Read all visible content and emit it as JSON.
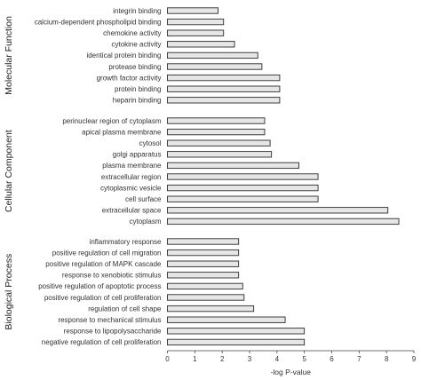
{
  "chart_data": {
    "type": "bar",
    "orientation": "horizontal",
    "xlabel": "-log P-value",
    "xlim": [
      0,
      9
    ],
    "xticks": [
      "0",
      "1",
      "2",
      "3",
      "4",
      "5",
      "6",
      "7",
      "8",
      "9"
    ],
    "grid": false,
    "legend": "none",
    "bar_color": "#e6e6e6",
    "bar_edge_color": "#2b2b2b",
    "groups": [
      {
        "name": "Molecular Function",
        "categories": [
          "integrin binding",
          "calcium-dependent phospholipid binding",
          "chemokine activity",
          "cytokine activity",
          "identical protein binding",
          "protease binding",
          "growth factor activity",
          "protein binding",
          "heparin binding"
        ],
        "values": [
          1.85,
          2.05,
          2.05,
          2.45,
          3.3,
          3.45,
          4.1,
          4.1,
          4.1
        ]
      },
      {
        "name": "Cellular Component",
        "categories": [
          "perinuclear region of cytoplasm",
          "apical plasma membrane",
          "cytosol",
          "golgi apparatus",
          "plasma membrane",
          "extracellular region",
          "cytoplasmic vesicle",
          "cell surface",
          "extracellular space",
          "cytoplasm"
        ],
        "values": [
          3.55,
          3.55,
          3.75,
          3.8,
          4.8,
          5.5,
          5.5,
          5.5,
          8.05,
          8.45
        ]
      },
      {
        "name": "Biological Process",
        "categories": [
          "inflammatory response",
          "positive regulation of cell migration",
          "positive regulation of MAPK cascade",
          "response to xenobiotic stimulus",
          "positive regulation of apoptotic process",
          "positive regulation of cell proliferation",
          "regulation of cell shape",
          "response to mechanical stimulus",
          "response to lipopolysaccharide",
          "negative regulation of cell proliferation"
        ],
        "values": [
          2.6,
          2.6,
          2.6,
          2.6,
          2.75,
          2.8,
          3.15,
          4.3,
          5.0,
          5.0
        ]
      }
    ]
  }
}
